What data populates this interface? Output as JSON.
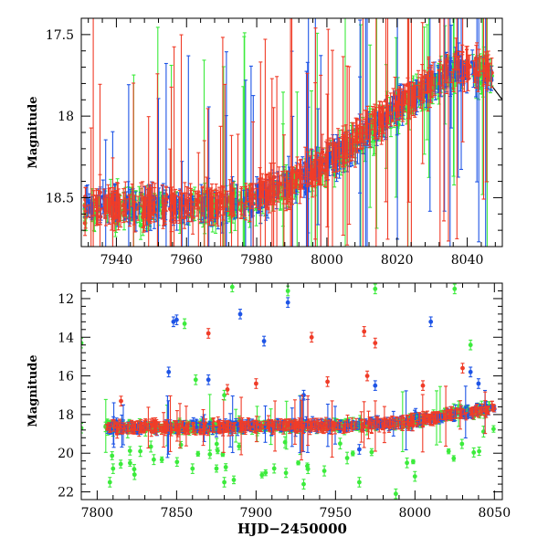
{
  "chart_data": [
    {
      "type": "scatter",
      "panel": "top",
      "title": "",
      "xlabel": "",
      "ylabel": "Magnitude",
      "xlim": [
        7930,
        8050
      ],
      "ylim": [
        18.8,
        17.4
      ],
      "y_inverted": true,
      "x_ticks": [
        "7940",
        "7960",
        "7980",
        "8000",
        "8020",
        "8040"
      ],
      "y_ticks": [
        "17.5",
        "18",
        "18.5"
      ],
      "grid": false,
      "legend": "none",
      "colors": {
        "red": "#f03c28",
        "green": "#3ceb3c",
        "blue": "#1f55e6"
      },
      "series": [
        {
          "color": "blue",
          "trend_x": [
            7931,
            7950,
            7975,
            7990,
            8005,
            8020,
            8035,
            8047
          ],
          "trend_y": [
            18.55,
            18.56,
            18.55,
            18.42,
            18.22,
            17.95,
            17.72,
            17.73
          ]
        },
        {
          "color": "green",
          "trend_x": [
            7931,
            7950,
            7975,
            7990,
            8005,
            8020,
            8035,
            8047
          ],
          "trend_y": [
            18.56,
            18.57,
            18.55,
            18.43,
            18.23,
            17.96,
            17.73,
            17.74
          ]
        },
        {
          "color": "red",
          "trend_x": [
            7931,
            7950,
            7975,
            7990,
            8005,
            8020,
            8035,
            8047
          ],
          "trend_y": [
            18.55,
            18.56,
            18.53,
            18.41,
            18.2,
            17.93,
            17.71,
            17.72
          ]
        }
      ],
      "line_segment": {
        "x": [
          8046.5,
          8050
        ],
        "y": [
          17.8,
          17.9
        ]
      }
    },
    {
      "type": "scatter",
      "panel": "bottom",
      "title": "",
      "xlabel": "HJD−2450000",
      "ylabel": "Magnitude",
      "xlim": [
        7790,
        8055
      ],
      "ylim": [
        22.4,
        11.2
      ],
      "y_inverted": true,
      "x_ticks": [
        "7800",
        "7850",
        "7900",
        "7950",
        "8000",
        "8050"
      ],
      "y_ticks": [
        "12",
        "14",
        "16",
        "18",
        "20",
        "22"
      ],
      "grid": false,
      "legend": "none",
      "series": [
        {
          "color": "blue",
          "outliers": [
            [
              7848,
              13.2
            ],
            [
              7850,
              13.1
            ],
            [
              7845,
              15.8
            ],
            [
              7870,
              16.2
            ],
            [
              7890,
              12.8
            ],
            [
              7905,
              14.2
            ],
            [
              7920,
              12.2
            ],
            [
              7875,
              18.9
            ],
            [
              7930,
              17.0
            ],
            [
              7975,
              16.5
            ],
            [
              8010,
              13.2
            ],
            [
              8035,
              15.8
            ],
            [
              8040,
              16.4
            ],
            [
              7965,
              19.8
            ]
          ]
        },
        {
          "color": "green",
          "outliers": [
            [
              7790,
              14.3
            ],
            [
              7855,
              13.3
            ],
            [
              7885,
              11.4
            ],
            [
              7920,
              11.6
            ],
            [
              7975,
              11.5
            ],
            [
              8025,
              11.5
            ],
            [
              8035,
              14.4
            ],
            [
              7862,
              16.2
            ],
            [
              7880,
              17.0
            ],
            [
              7810,
              20.8
            ],
            [
              7808,
              21.5
            ],
            [
              7860,
              20.8
            ],
            [
              7880,
              21.5
            ],
            [
              7930,
              21.6
            ],
            [
              7965,
              21.5
            ],
            [
              7988,
              22.1
            ],
            [
              8000,
              21.2
            ],
            [
              7995,
              20.5
            ],
            [
              7790,
              18.7
            ]
          ]
        },
        {
          "color": "red",
          "outliers": [
            [
              7870,
              13.8
            ],
            [
              7935,
              14.0
            ],
            [
              7968,
              13.7
            ],
            [
              7975,
              14.3
            ],
            [
              7815,
              17.3
            ],
            [
              7882,
              16.7
            ],
            [
              7900,
              16.4
            ],
            [
              7945,
              16.3
            ],
            [
              7970,
              16.0
            ],
            [
              8005,
              16.5
            ],
            [
              8030,
              15.6
            ]
          ]
        }
      ],
      "trend_x": [
        7805,
        7850,
        7900,
        7950,
        7985,
        8005,
        8025,
        8050
      ],
      "trend_y": [
        18.65,
        18.65,
        18.6,
        18.6,
        18.5,
        18.25,
        17.95,
        17.7
      ]
    }
  ]
}
